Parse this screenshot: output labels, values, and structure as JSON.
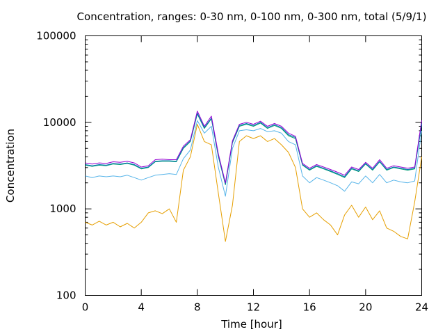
{
  "chart_data": {
    "type": "line",
    "title": "Concentration, ranges: 0-30 nm, 0-100 nm, 0-300 nm, total (5/9/1)",
    "xlabel": "Time [hour]",
    "ylabel": "Concentration",
    "xlim": [
      0,
      24
    ],
    "ylim": [
      100,
      100000
    ],
    "yscale": "log",
    "grid": false,
    "x_ticks": [
      "0",
      "4",
      "8",
      "12",
      "16",
      "20",
      "24"
    ],
    "y_ticks": [
      "100",
      "1000",
      "10000",
      "100000"
    ],
    "x": [
      0,
      0.5,
      1,
      1.5,
      2,
      2.5,
      3,
      3.5,
      4,
      4.5,
      5,
      5.5,
      6,
      6.5,
      7,
      7.5,
      8,
      8.5,
      9,
      9.5,
      10,
      10.5,
      11,
      11.5,
      12,
      12.5,
      13,
      13.5,
      14,
      14.5,
      15,
      15.5,
      16,
      16.5,
      17,
      17.5,
      18,
      18.5,
      19,
      19.5,
      20,
      20.5,
      21,
      21.5,
      22,
      22.5,
      23,
      23.5,
      24
    ],
    "series": [
      {
        "color": "#e69f00",
        "values": [
          700,
          650,
          720,
          650,
          700,
          620,
          680,
          600,
          700,
          900,
          950,
          880,
          1000,
          700,
          2800,
          4000,
          9500,
          6000,
          5500,
          1500,
          420,
          1100,
          6000,
          7000,
          6500,
          7000,
          6000,
          6500,
          5500,
          4500,
          3000,
          1000,
          800,
          900,
          750,
          650,
          500,
          850,
          1100,
          800,
          1050,
          750,
          950,
          600,
          550,
          480,
          450,
          1200,
          4000
        ]
      },
      {
        "color": "#56b4e9",
        "values": [
          2400,
          2300,
          2400,
          2350,
          2400,
          2350,
          2450,
          2300,
          2150,
          2300,
          2450,
          2500,
          2550,
          2500,
          3800,
          4800,
          10500,
          7500,
          9000,
          3000,
          1400,
          5000,
          8000,
          8200,
          8000,
          8500,
          7800,
          8000,
          7500,
          6000,
          5500,
          2400,
          2000,
          2300,
          2150,
          2000,
          1850,
          1600,
          2050,
          1950,
          2400,
          2000,
          2500,
          2000,
          2150,
          2050,
          2000,
          2100,
          8000
        ]
      },
      {
        "color": "#009e73",
        "values": [
          3200,
          3100,
          3200,
          3150,
          3300,
          3250,
          3350,
          3200,
          2900,
          3000,
          3500,
          3550,
          3550,
          3500,
          5000,
          6000,
          12500,
          8500,
          11000,
          4000,
          1900,
          5800,
          9000,
          9500,
          9000,
          9800,
          8500,
          9200,
          8500,
          7000,
          6500,
          3200,
          2800,
          3100,
          2900,
          2700,
          2500,
          2300,
          2900,
          2700,
          3300,
          2800,
          3500,
          2800,
          3000,
          2900,
          2800,
          2900,
          9500
        ]
      },
      {
        "color": "#0072b2",
        "values": [
          3250,
          3150,
          3250,
          3200,
          3350,
          3300,
          3400,
          3250,
          2950,
          3050,
          3550,
          3600,
          3600,
          3550,
          5100,
          6100,
          12800,
          8700,
          11200,
          4100,
          1950,
          5900,
          9200,
          9700,
          9200,
          10000,
          8700,
          9400,
          8700,
          7200,
          6700,
          3250,
          2850,
          3150,
          2950,
          2750,
          2550,
          2350,
          2950,
          2750,
          3350,
          2850,
          3550,
          2850,
          3050,
          2950,
          2850,
          2950,
          9700
        ]
      },
      {
        "color": "#9400d3",
        "values": [
          3400,
          3300,
          3400,
          3350,
          3500,
          3450,
          3550,
          3400,
          3050,
          3150,
          3700,
          3750,
          3700,
          3700,
          5300,
          6300,
          13500,
          9000,
          11800,
          4300,
          2000,
          6100,
          9500,
          10000,
          9500,
          10300,
          9000,
          9700,
          9000,
          7500,
          6900,
          3350,
          2950,
          3250,
          3050,
          2850,
          2650,
          2450,
          3050,
          2850,
          3450,
          2950,
          3700,
          2950,
          3150,
          3050,
          2950,
          3050,
          10500
        ]
      }
    ]
  }
}
